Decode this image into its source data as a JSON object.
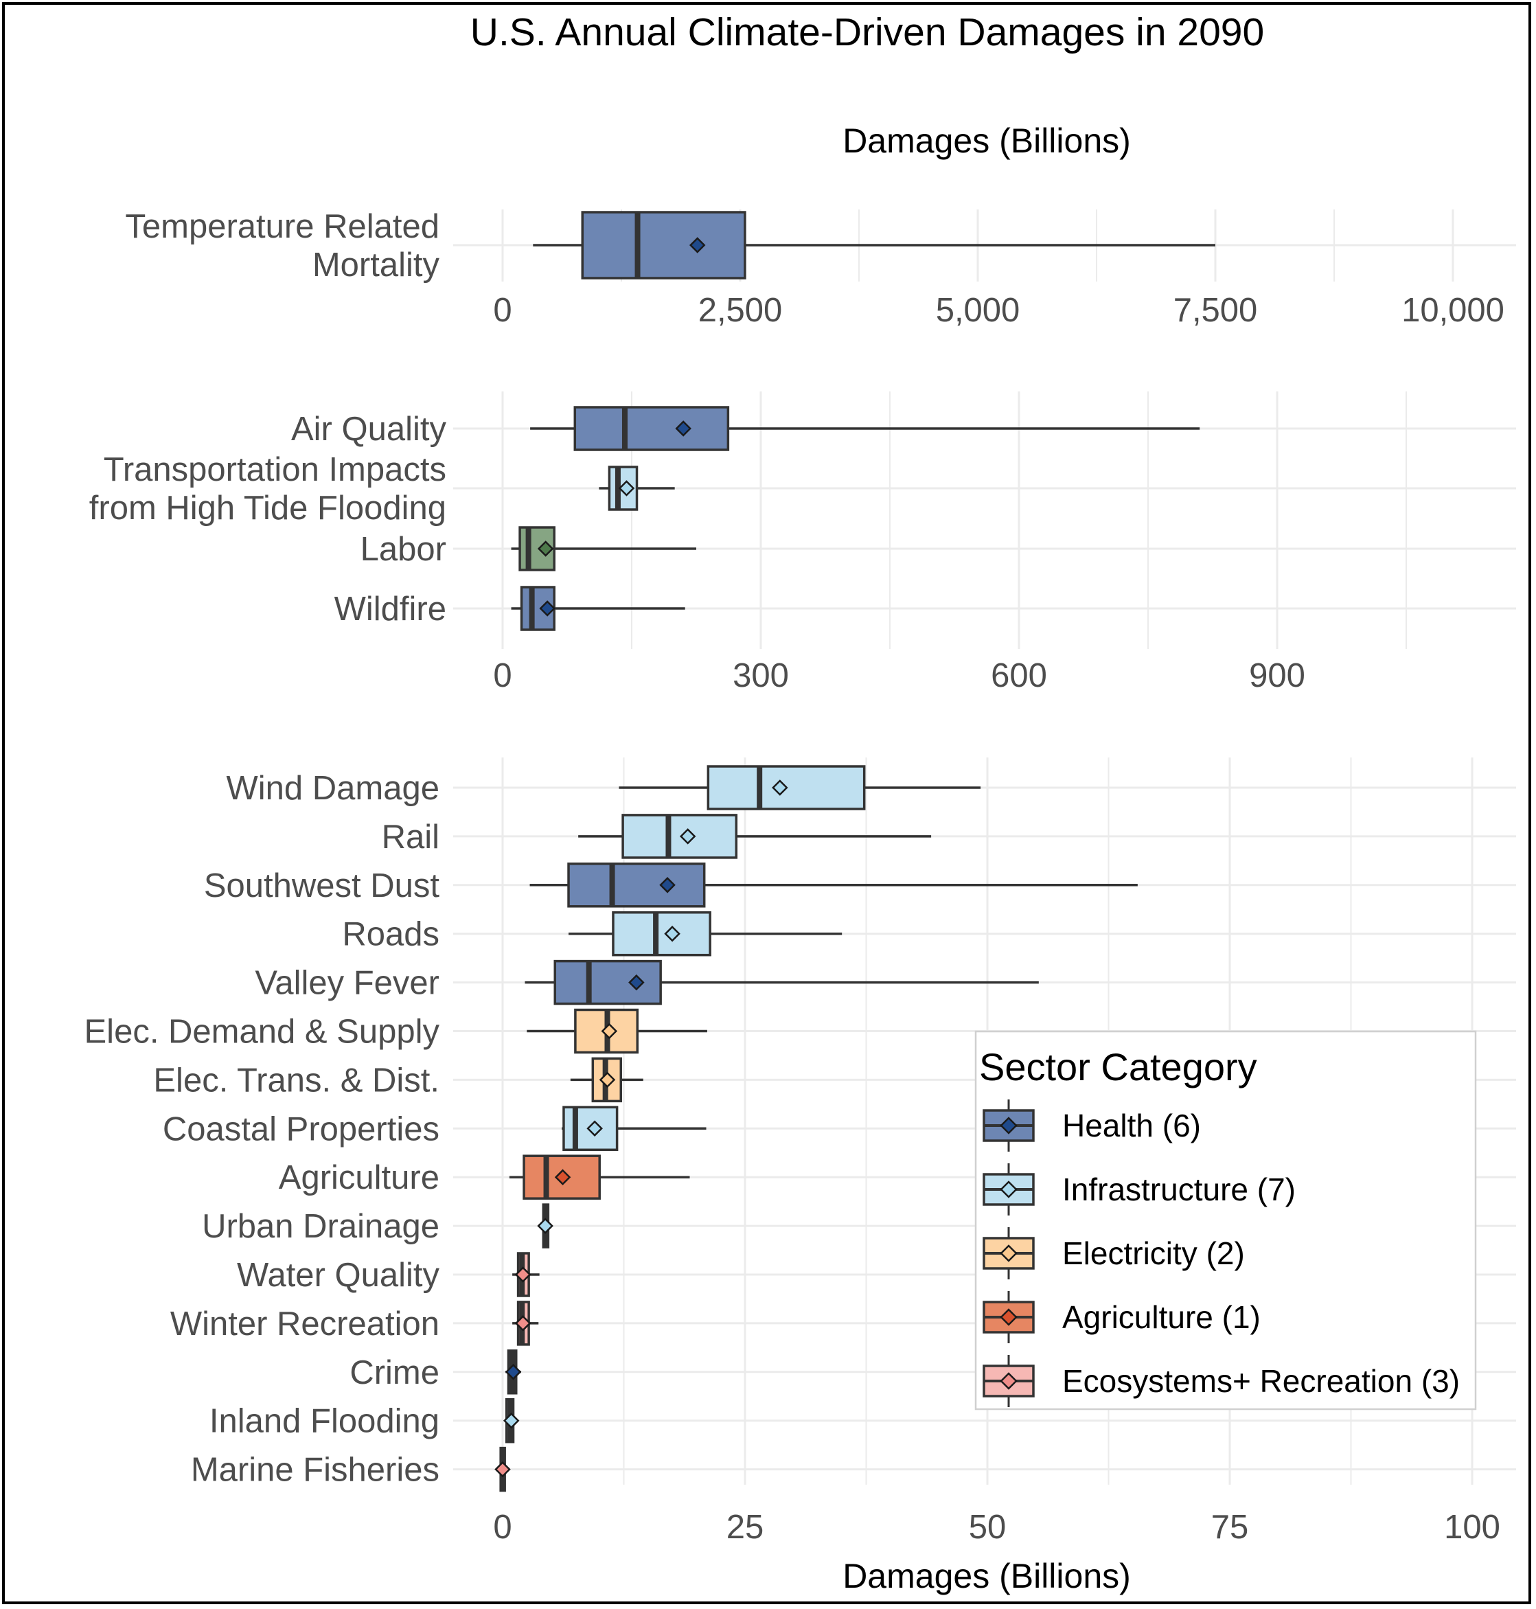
{
  "chart_data": {
    "type": "boxplot",
    "title": "U.S. Annual Climate-Driven Damages in 2090",
    "top_axis_label": "Damages (Billions)",
    "xlabel": "Damages (Billions)",
    "legend": {
      "title": "Sector Category",
      "placement": "bottom-right",
      "entries": [
        {
          "key": "health",
          "label": "Health (6)",
          "fill": "#6d86b3",
          "point": "#1f4a8c"
        },
        {
          "key": "infrastructure",
          "label": "Infrastructure (7)",
          "fill": "#bfe0f0",
          "point": "#a9d9ee"
        },
        {
          "key": "electricity",
          "label": "Electricity (2)",
          "fill": "#fdd3a3",
          "point": "#fdc98e"
        },
        {
          "key": "agriculture",
          "label": "Agriculture (1)",
          "fill": "#e68662",
          "point": "#d9512d"
        },
        {
          "key": "ecosystems",
          "label": "Ecosystems+ Recreation (3)",
          "fill": "#f6b8b4",
          "point": "#f08e8a"
        }
      ]
    },
    "panels": [
      {
        "xlim": [
          0,
          11000
        ],
        "ticks": [
          0,
          2500,
          5000,
          7500,
          10000
        ],
        "tick_labels": [
          "0",
          "2,500",
          "5,000",
          "7,500",
          "10,000"
        ],
        "items": [
          {
            "label": [
              "Temperature Related",
              "Mortality"
            ],
            "category": "health",
            "whisker_low": 320,
            "q1": 840,
            "median": 1420,
            "q3": 2550,
            "whisker_high": 7500,
            "mean": 2050
          }
        ]
      },
      {
        "xlim": [
          0,
          1170
        ],
        "ticks": [
          0,
          300,
          600,
          900
        ],
        "tick_labels": [
          "0",
          "300",
          "600",
          "900"
        ],
        "items": [
          {
            "label": [
              "Air Quality"
            ],
            "category": "health",
            "whisker_low": 32,
            "q1": 84,
            "median": 142,
            "q3": 262,
            "whisker_high": 810,
            "mean": 210
          },
          {
            "label": [
              "Transportation Impacts",
              "from High Tide Flooding"
            ],
            "category": "infrastructure",
            "whisker_low": 112,
            "q1": 124,
            "median": 134,
            "q3": 156,
            "whisker_high": 200,
            "mean": 144
          },
          {
            "label": [
              "Labor"
            ],
            "category": "agriculture_green",
            "whisker_low": 10,
            "q1": 20,
            "median": 30,
            "q3": 60,
            "whisker_high": 225,
            "mean": 50
          },
          {
            "label": [
              "Wildfire"
            ],
            "category": "health",
            "whisker_low": 10,
            "q1": 22,
            "median": 34,
            "q3": 60,
            "whisker_high": 212,
            "mean": 52
          }
        ]
      },
      {
        "xlim": [
          0,
          104
        ],
        "ticks": [
          0,
          25,
          50,
          75,
          100
        ],
        "tick_labels": [
          "0",
          "25",
          "50",
          "75",
          "100"
        ],
        "items": [
          {
            "label": [
              "Wind Damage"
            ],
            "category": "infrastructure",
            "whisker_low": 12,
            "q1": 21.2,
            "median": 26.5,
            "q3": 37.3,
            "whisker_high": 49.3,
            "mean": 28.6
          },
          {
            "label": [
              "Rail"
            ],
            "category": "infrastructure",
            "whisker_low": 7.8,
            "q1": 12.4,
            "median": 17.1,
            "q3": 24.1,
            "whisker_high": 44.2,
            "mean": 19.1
          },
          {
            "label": [
              "Southwest Dust"
            ],
            "category": "health",
            "whisker_low": 2.8,
            "q1": 6.8,
            "median": 11.3,
            "q3": 20.8,
            "whisker_high": 65.5,
            "mean": 17
          },
          {
            "label": [
              "Roads"
            ],
            "category": "infrastructure",
            "whisker_low": 6.8,
            "q1": 11.4,
            "median": 15.8,
            "q3": 21.4,
            "whisker_high": 35,
            "mean": 17.5
          },
          {
            "label": [
              "Valley Fever"
            ],
            "category": "health",
            "whisker_low": 2.3,
            "q1": 5.4,
            "median": 8.9,
            "q3": 16.3,
            "whisker_high": 55.3,
            "mean": 13.8
          },
          {
            "label": [
              "Elec. Demand & Supply"
            ],
            "category": "electricity",
            "whisker_low": 2.5,
            "q1": 7.5,
            "median": 10.8,
            "q3": 13.9,
            "whisker_high": 21.1,
            "mean": 11
          },
          {
            "label": [
              "Elec. Trans. & Dist."
            ],
            "category": "electricity",
            "whisker_low": 7,
            "q1": 9.3,
            "median": 10.6,
            "q3": 12.2,
            "whisker_high": 14.5,
            "mean": 10.8
          },
          {
            "label": [
              "Coastal Properties"
            ],
            "category": "infrastructure",
            "whisker_low": 6.1,
            "q1": 6.3,
            "median": 7.5,
            "q3": 11.8,
            "whisker_high": 21,
            "mean": 9.5
          },
          {
            "label": [
              "Agriculture"
            ],
            "category": "agriculture",
            "whisker_low": 0.7,
            "q1": 2.2,
            "median": 4.5,
            "q3": 10,
            "whisker_high": 19.3,
            "mean": 6.2
          },
          {
            "label": [
              "Urban Drainage"
            ],
            "category": "infrastructure",
            "whisker_low": 4.1,
            "q1": 4.2,
            "median": 4.4,
            "q3": 4.7,
            "whisker_high": 4.9,
            "mean": 4.4
          },
          {
            "label": [
              "Water Quality"
            ],
            "category": "ecosystems",
            "whisker_low": 1,
            "q1": 1.6,
            "median": 2,
            "q3": 2.7,
            "whisker_high": 3.8,
            "mean": 2.1
          },
          {
            "label": [
              "Winter Recreation"
            ],
            "category": "ecosystems",
            "whisker_low": 1,
            "q1": 1.6,
            "median": 2,
            "q3": 2.7,
            "whisker_high": 3.7,
            "mean": 2.1
          },
          {
            "label": [
              "Crime"
            ],
            "category": "health",
            "whisker_low": 0.3,
            "q1": 0.6,
            "median": 1,
            "q3": 1.4,
            "whisker_high": 1.9,
            "mean": 1.1
          },
          {
            "label": [
              "Inland Flooding"
            ],
            "category": "infrastructure",
            "whisker_low": 0.2,
            "q1": 0.4,
            "median": 0.8,
            "q3": 1.1,
            "whisker_high": 1.3,
            "mean": 0.9
          },
          {
            "label": [
              "Marine Fisheries"
            ],
            "category": "ecosystems",
            "whisker_low": -0.4,
            "q1": -0.2,
            "median": 0,
            "q3": 0.2,
            "whisker_high": 0.4,
            "mean": 0
          }
        ]
      }
    ],
    "colors": {
      "health": {
        "fill": "#6d86b3",
        "point": "#1f4a8c"
      },
      "infrastructure": {
        "fill": "#bfe0f0",
        "point": "#a9d9ee"
      },
      "electricity": {
        "fill": "#fdd3a3",
        "point": "#fdc98e"
      },
      "agriculture": {
        "fill": "#e68662",
        "point": "#d9512d"
      },
      "agriculture_green": {
        "fill": "#86a583",
        "point": "#4e7a4b"
      },
      "ecosystems": {
        "fill": "#f6b8b4",
        "point": "#f08e8a"
      },
      "grid": "#ebebeb",
      "box_stroke": "#333333"
    }
  }
}
